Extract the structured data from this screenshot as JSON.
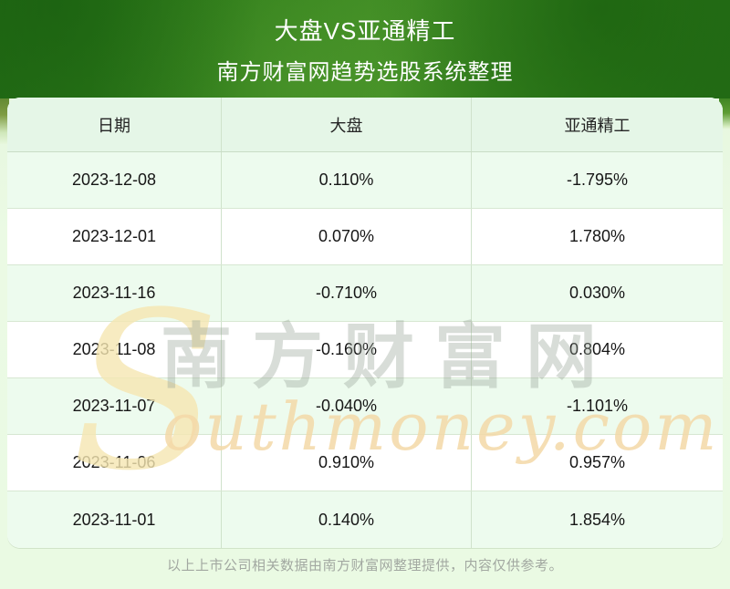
{
  "banner": {
    "title": "大盘VS亚通精工",
    "subtitle": "南方财富网趋势选股系统整理"
  },
  "chart_data": {
    "type": "table",
    "title": "大盘VS亚通精工",
    "subtitle": "南方财富网趋势选股系统整理",
    "columns": [
      "日期",
      "大盘",
      "亚通精工"
    ],
    "rows": [
      [
        "2023-12-08",
        "0.110%",
        "-1.795%"
      ],
      [
        "2023-12-01",
        "0.070%",
        "1.780%"
      ],
      [
        "2023-11-16",
        "-0.710%",
        "0.030%"
      ],
      [
        "2023-11-08",
        "-0.160%",
        "0.804%"
      ],
      [
        "2023-11-07",
        "-0.040%",
        "-1.101%"
      ],
      [
        "2023-11-06",
        "0.910%",
        "0.957%"
      ],
      [
        "2023-11-01",
        "0.140%",
        "1.854%"
      ]
    ],
    "layout_hints": {
      "row_striping": [
        "white",
        "light-green"
      ],
      "header_bg": "#e5f6e7"
    }
  },
  "watermark": {
    "initial": "S",
    "script_text": "outhmoney.com",
    "cjk_text": "南方财富网"
  },
  "footer": {
    "disclaimer": "以上上市公司相关数据由南方财富网整理提供，内容仅供参考。"
  },
  "colors": {
    "banner_green": "#2f7d1a",
    "banner_green_dark": "#236c15",
    "header_row_bg": "#e5f6e7",
    "alt_row_bg": "#edfbee",
    "grid_line": "#cfe2cb",
    "watermark_gold": "#f4d9a8",
    "watermark_gray": "#96a296",
    "footer_text": "#a2a8a1"
  }
}
